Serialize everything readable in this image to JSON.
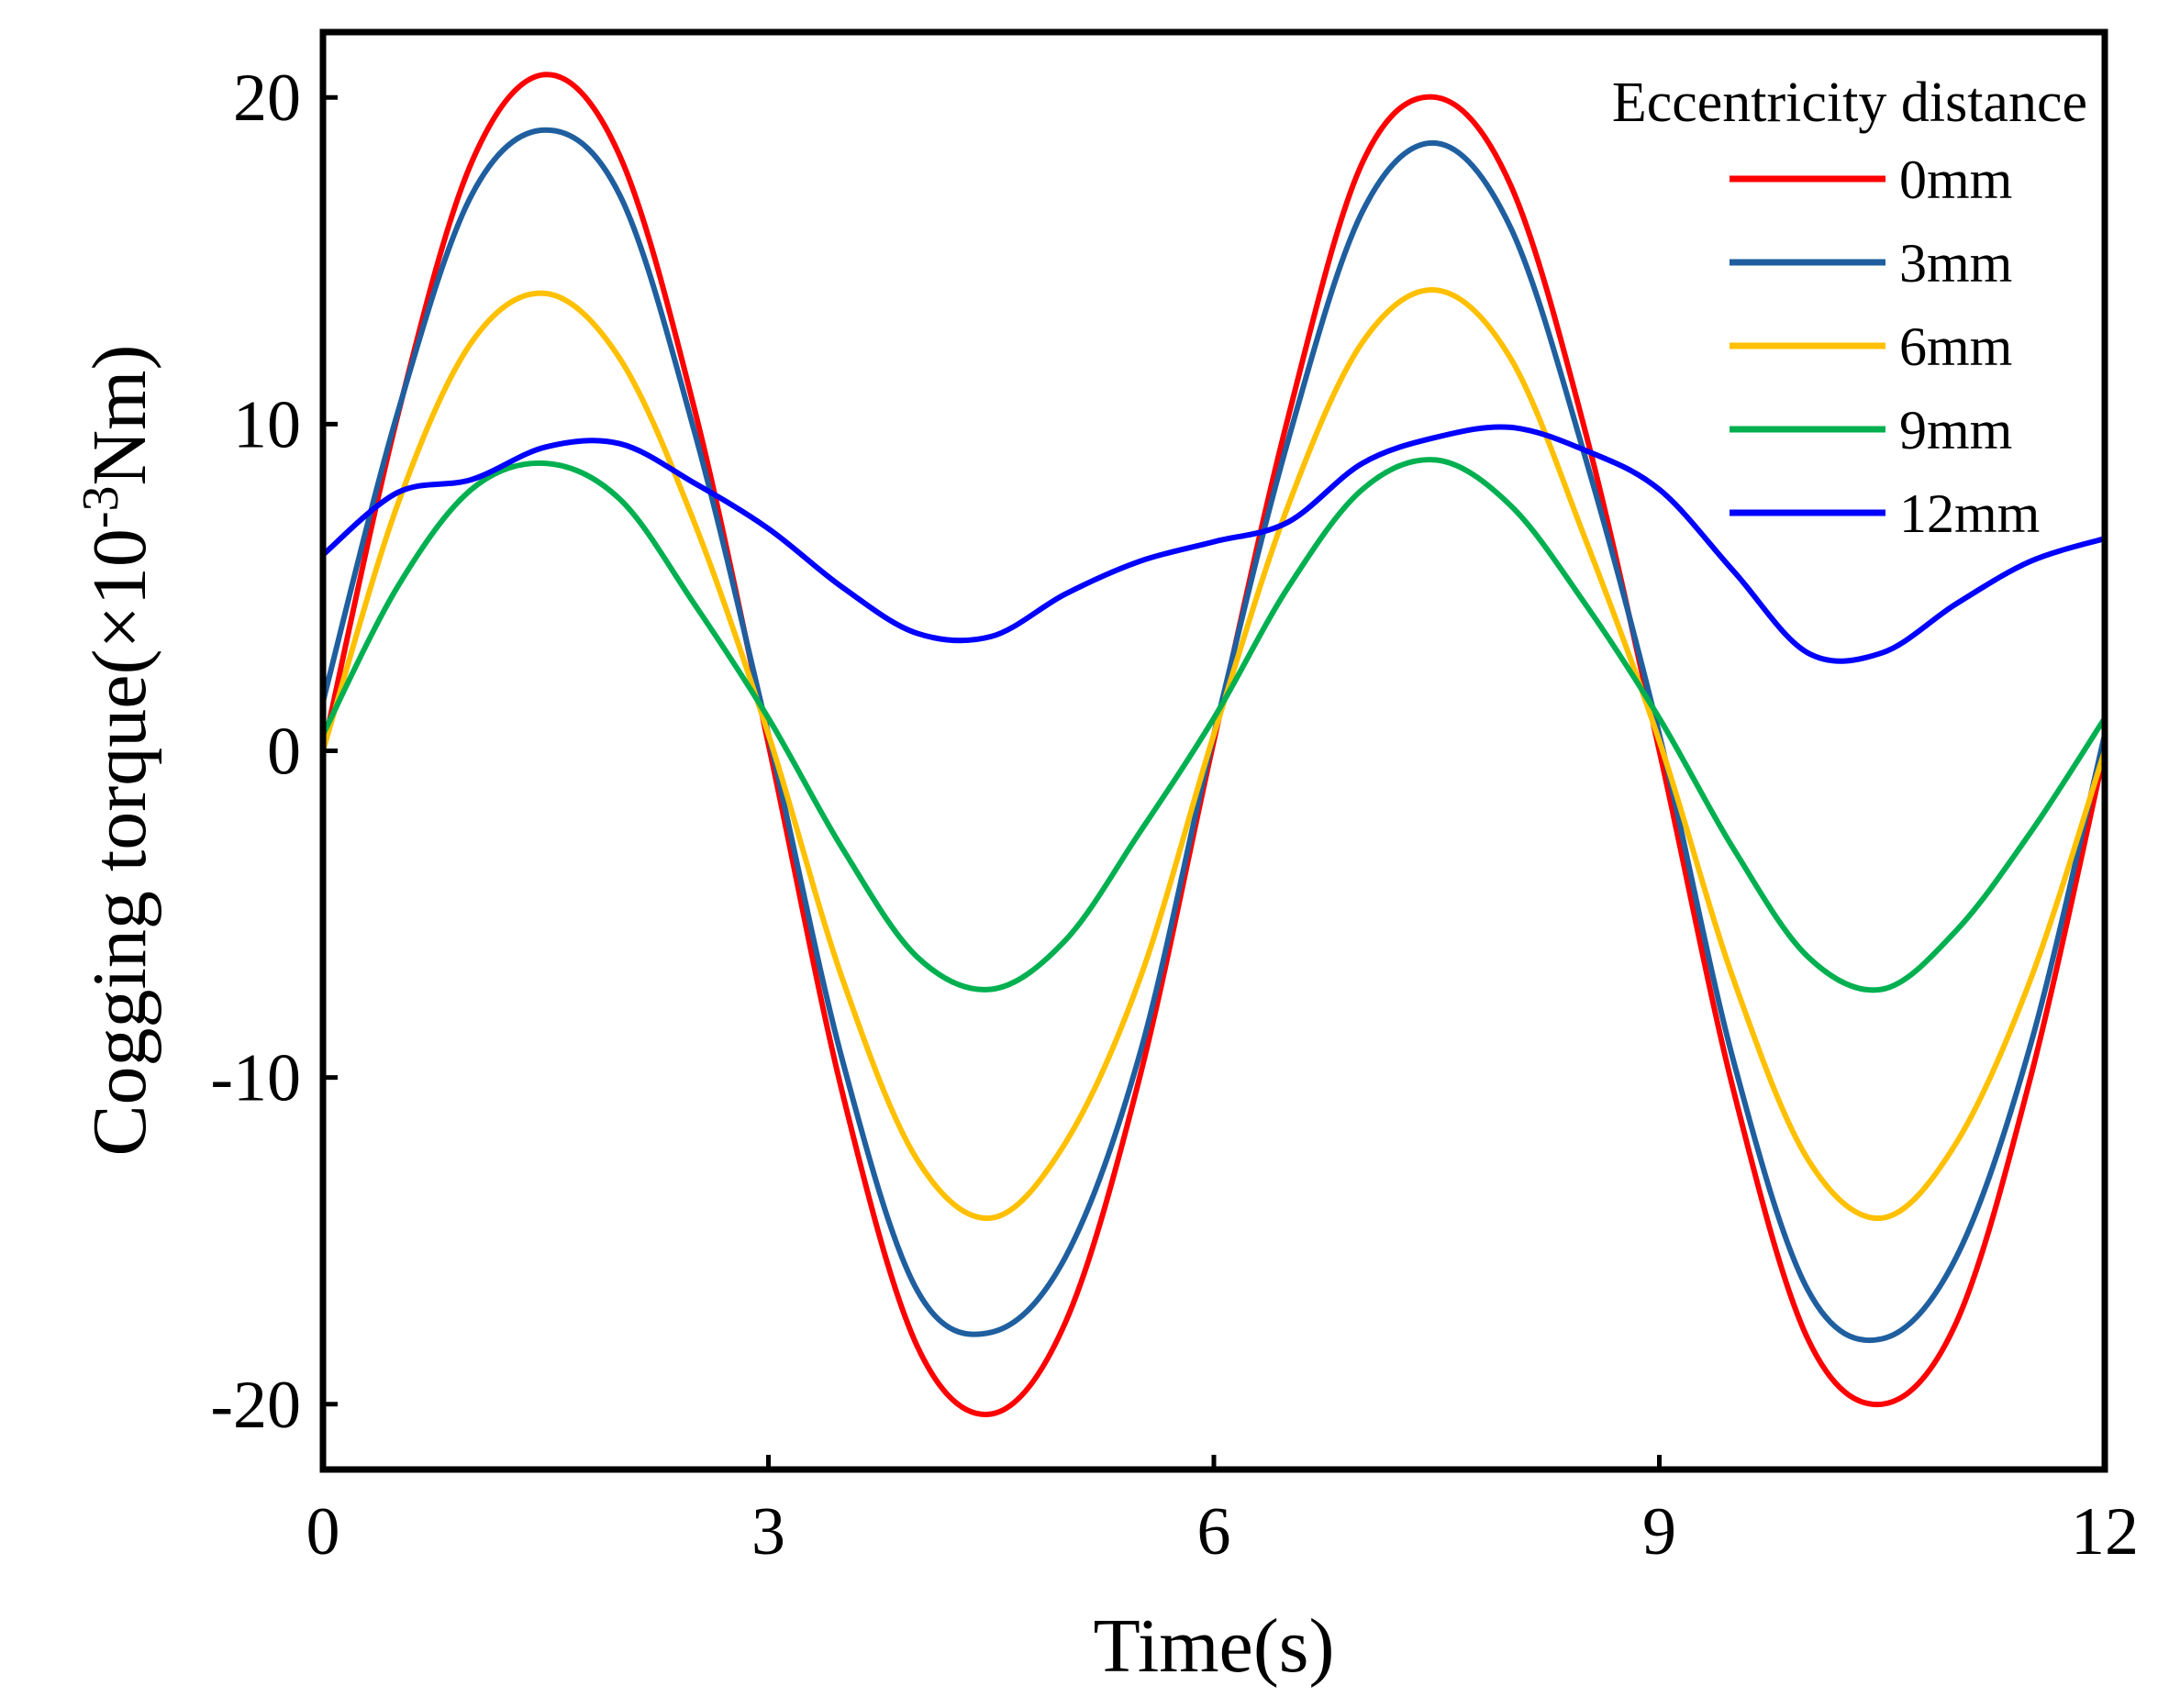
{
  "chart_data": {
    "type": "line",
    "title": "",
    "xlabel": "Time(s)",
    "ylabel": "Cogging torque(×10⁻³Nm)",
    "ylabel_parts": {
      "prefix": "Cogging torque(×10",
      "sup": "-3",
      "suffix": "Nm)"
    },
    "xlim": [
      0,
      12
    ],
    "ylim": [
      -22,
      22
    ],
    "xticks": [
      0,
      3,
      6,
      9,
      12
    ],
    "xtick_labels": [
      "0",
      "3",
      "6",
      "9",
      "12"
    ],
    "yticks": [
      -20,
      -10,
      0,
      10,
      20
    ],
    "ytick_labels": [
      "-20",
      "-10",
      "0",
      "10",
      "20"
    ],
    "grid": false,
    "legend": {
      "title": "Eccentricity distance",
      "position": "top-right"
    },
    "x": [
      0,
      0.5,
      1,
      1.5,
      2,
      2.5,
      3,
      3.5,
      4,
      4.5,
      5,
      5.5,
      6,
      6.5,
      7,
      7.5,
      8,
      8.5,
      9,
      9.5,
      10,
      10.5,
      11,
      11.5,
      12
    ],
    "series": [
      {
        "name": "0mm",
        "color": "#ff0000",
        "values": [
          0,
          10.2,
          18.0,
          20.7,
          18.2,
          10.5,
          0.2,
          -10.5,
          -18.2,
          -20.3,
          -17.5,
          -10.0,
          0.3,
          10.2,
          18.0,
          20.0,
          17.3,
          9.8,
          0,
          -10.4,
          -18.0,
          -20.0,
          -17.5,
          -10.0,
          0
        ]
      },
      {
        "name": "3mm",
        "color": "#1f5f9f",
        "values": [
          1.5,
          10.3,
          17.0,
          19.0,
          17.0,
          9.8,
          0.5,
          -9.5,
          -16.5,
          -17.8,
          -15.5,
          -9.3,
          0.5,
          9.5,
          16.5,
          18.6,
          16.0,
          9.0,
          0.5,
          -9.5,
          -16.5,
          -18.0,
          -15.5,
          -9.0,
          0.5
        ]
      },
      {
        "name": "6mm",
        "color": "#ffc000",
        "values": [
          0,
          7.5,
          12.5,
          14.0,
          12.0,
          7.0,
          0.5,
          -7.0,
          -12.5,
          -14.3,
          -12.0,
          -7.0,
          0.5,
          7.5,
          12.5,
          14.1,
          12.0,
          6.5,
          0.3,
          -7.0,
          -12.5,
          -14.3,
          -12.0,
          -7.0,
          0
        ]
      },
      {
        "name": "9mm",
        "color": "#00b050",
        "values": [
          0.5,
          5.0,
          8.0,
          8.8,
          7.7,
          4.5,
          1.0,
          -3.0,
          -6.3,
          -7.3,
          -5.8,
          -2.5,
          1.0,
          5.0,
          8.0,
          8.9,
          7.5,
          4.5,
          1.0,
          -3.0,
          -6.3,
          -7.3,
          -5.5,
          -2.5,
          1.0
        ]
      },
      {
        "name": "12mm",
        "color": "#0000ff",
        "values": [
          6.0,
          7.9,
          8.3,
          9.3,
          9.4,
          8.2,
          6.8,
          5.0,
          3.6,
          3.5,
          4.8,
          5.8,
          6.4,
          7.0,
          8.8,
          9.6,
          9.9,
          9.2,
          8.0,
          5.5,
          3.0,
          3.0,
          4.5,
          5.8,
          6.5
        ]
      }
    ]
  }
}
